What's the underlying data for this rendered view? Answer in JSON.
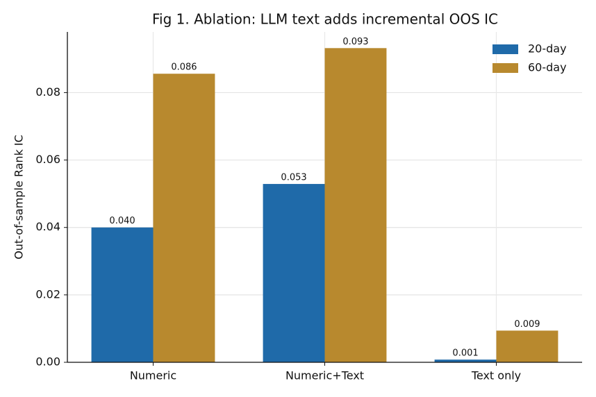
{
  "chart_data": {
    "type": "bar",
    "title": "Fig 1. Ablation: LLM text adds incremental OOS IC",
    "y_label": "Out-of-sample Rank IC",
    "categories": [
      "Numeric",
      "Numeric+Text",
      "Text only"
    ],
    "series": [
      {
        "name": "20-day",
        "color": "#1f6aa9",
        "values": [
          0.04,
          0.0529,
          0.0008
        ],
        "value_labels": [
          "0.040",
          "0.053",
          "0.001"
        ]
      },
      {
        "name": "60-day",
        "color": "#b8892e",
        "values": [
          0.0856,
          0.0932,
          0.0094
        ],
        "value_labels": [
          "0.086",
          "0.093",
          "0.009"
        ]
      }
    ],
    "ylim": [
      0,
      0.098
    ],
    "yticks": [
      {
        "value": 0,
        "label": "0.00"
      },
      {
        "value": 0.02,
        "label": "0.02"
      },
      {
        "value": 0.04,
        "label": "0.04"
      },
      {
        "value": 0.06,
        "label": "0.06"
      },
      {
        "value": 0.08,
        "label": "0.08"
      }
    ],
    "grid": true,
    "legend": "upper right"
  }
}
